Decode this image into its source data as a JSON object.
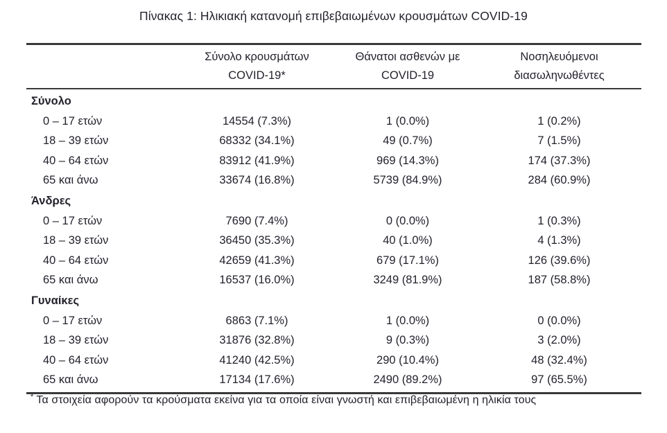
{
  "title": "Πίνακας 1: Ηλικιακή κατανομή επιβεβαιωμένων κρουσμάτων COVID-19",
  "colors": {
    "text": "#22222c",
    "rule": "#383838",
    "background": "#ffffff"
  },
  "table": {
    "columns": [
      {
        "line1": "Σύνολο κρουσμάτων",
        "line2": "COVID-19*"
      },
      {
        "line1": "Θάνατοι ασθενών με",
        "line2": "COVID-19"
      },
      {
        "line1": "Νοσηλευόμενοι",
        "line2": "διασωληνωθέντες"
      }
    ],
    "sections": [
      {
        "header": "Σύνολο",
        "rows": [
          {
            "label": "0 – 17 ετών",
            "cases": "14554 (7.3%)",
            "deaths": "1 (0.0%)",
            "intubated": "1 (0.2%)"
          },
          {
            "label": "18 – 39 ετών",
            "cases": "68332 (34.1%)",
            "deaths": "49 (0.7%)",
            "intubated": "7 (1.5%)"
          },
          {
            "label": "40 – 64 ετών",
            "cases": "83912 (41.9%)",
            "deaths": "969 (14.3%)",
            "intubated": "174 (37.3%)"
          },
          {
            "label": "65 και άνω",
            "cases": "33674 (16.8%)",
            "deaths": "5739 (84.9%)",
            "intubated": "284 (60.9%)"
          }
        ]
      },
      {
        "header": "Άνδρες",
        "rows": [
          {
            "label": "0 – 17 ετών",
            "cases": "7690 (7.4%)",
            "deaths": "0 (0.0%)",
            "intubated": "1 (0.3%)"
          },
          {
            "label": "18 – 39 ετών",
            "cases": "36450 (35.3%)",
            "deaths": "40 (1.0%)",
            "intubated": "4 (1.3%)"
          },
          {
            "label": "40 – 64 ετών",
            "cases": "42659 (41.3%)",
            "deaths": "679 (17.1%)",
            "intubated": "126 (39.6%)"
          },
          {
            "label": "65 και άνω",
            "cases": "16537 (16.0%)",
            "deaths": "3249 (81.9%)",
            "intubated": "187 (58.8%)"
          }
        ]
      },
      {
        "header": "Γυναίκες",
        "rows": [
          {
            "label": "0 – 17 ετών",
            "cases": "6863 (7.1%)",
            "deaths": "1 (0.0%)",
            "intubated": "0 (0.0%)"
          },
          {
            "label": "18 – 39 ετών",
            "cases": "31876 (32.8%)",
            "deaths": "9 (0.3%)",
            "intubated": "3 (2.0%)"
          },
          {
            "label": "40 – 64 ετών",
            "cases": "41240 (42.5%)",
            "deaths": "290 (10.4%)",
            "intubated": "48 (32.4%)"
          },
          {
            "label": "65 και άνω",
            "cases": "17134 (17.6%)",
            "deaths": "2490 (89.2%)",
            "intubated": "97 (65.5%)"
          }
        ]
      }
    ],
    "footnote_marker": "*",
    "footnote": "Τα στοιχεία αφορούν τα κρούσματα εκείνα για τα οποία είναι γνωστή και επιβεβαιωμένη η ηλικία τους"
  }
}
